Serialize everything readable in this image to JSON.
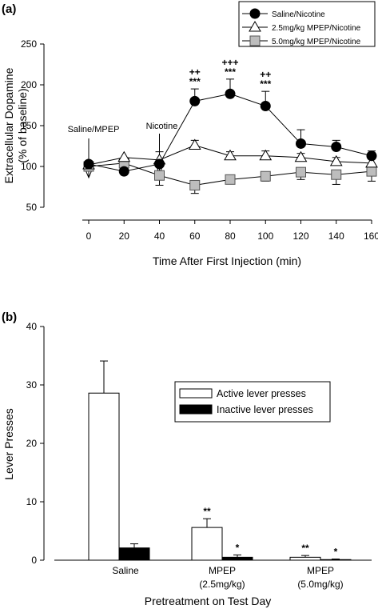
{
  "chart_data": [
    {
      "type": "line",
      "panel_label": "(a)",
      "ylabel_line1": "Extracellular Dopamine",
      "ylabel_line2": "(% of baseline)",
      "xlabel": "Time After First Injection (min)",
      "xlim": [
        -5,
        165
      ],
      "ylim": [
        50,
        250
      ],
      "x": [
        0,
        20,
        40,
        60,
        80,
        100,
        120,
        140,
        160
      ],
      "yticks": [
        50,
        100,
        150,
        200,
        250
      ],
      "series": [
        {
          "name": "Saline/Nicotine",
          "marker": "circle",
          "fill": "#000000",
          "values": [
            103,
            94,
            103,
            180,
            189,
            174,
            128,
            124,
            113
          ],
          "errors": [
            0,
            0,
            0,
            15,
            18,
            18,
            17,
            8,
            6
          ]
        },
        {
          "name": "2.5mg/kg MPEP/Nicotine",
          "marker": "triangle",
          "fill": "#ffffff",
          "values": [
            102,
            111,
            108,
            126,
            113,
            113,
            111,
            106,
            104
          ],
          "errors": [
            0,
            0,
            10,
            6,
            5,
            6,
            5,
            5,
            6
          ]
        },
        {
          "name": "5.0mg/kg MPEP/Nicotine",
          "marker": "square",
          "fill": "#bdbdbd",
          "values": [
            100,
            104,
            89,
            77,
            84,
            88,
            93,
            90,
            94
          ],
          "errors": [
            0,
            5,
            12,
            10,
            5,
            6,
            9,
            12,
            12
          ]
        }
      ],
      "annotations": [
        {
          "text": "Saline/MPEP",
          "x": 0
        },
        {
          "text": "Nicotine",
          "x": 40
        }
      ],
      "significance": [
        {
          "x": 60,
          "top": "++",
          "bottom": "***"
        },
        {
          "x": 80,
          "top": "+++",
          "bottom": "***"
        },
        {
          "x": 100,
          "top": "++",
          "bottom": "***"
        }
      ]
    },
    {
      "type": "bar",
      "panel_label": "(b)",
      "ylabel": "Lever Presses",
      "xlabel": "Pretreatment on Test Day",
      "ylim": [
        0,
        40
      ],
      "yticks": [
        0,
        10,
        20,
        30,
        40
      ],
      "categories": [
        {
          "line1": "Saline",
          "line2": ""
        },
        {
          "line1": "MPEP",
          "line2": "(2.5mg/kg)"
        },
        {
          "line1": "MPEP",
          "line2": "(5.0mg/kg)"
        }
      ],
      "series": [
        {
          "name": "Active lever presses",
          "fill": "#ffffff",
          "values": [
            28.6,
            5.6,
            0.5
          ],
          "errors": [
            5.5,
            1.5,
            0.3
          ]
        },
        {
          "name": "Inactive lever presses",
          "fill": "#000000",
          "values": [
            2.1,
            0.5,
            0.1
          ],
          "errors": [
            0.7,
            0.4,
            0.1
          ]
        }
      ],
      "significance": [
        {
          "category": 1,
          "series": 0,
          "text": "**"
        },
        {
          "category": 1,
          "series": 1,
          "text": "*"
        },
        {
          "category": 2,
          "series": 0,
          "text": "**"
        },
        {
          "category": 2,
          "series": 1,
          "text": "*"
        }
      ]
    }
  ]
}
